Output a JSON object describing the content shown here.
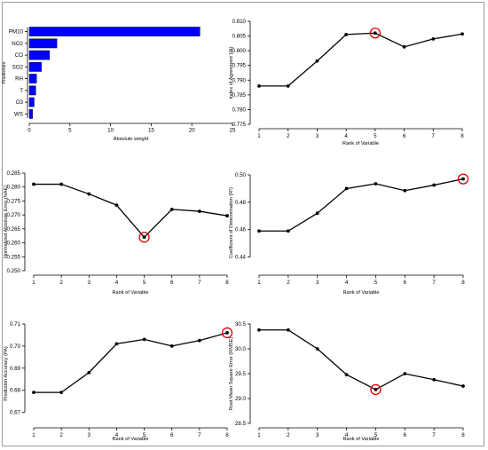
{
  "chart_data": [
    {
      "type": "bar",
      "orientation": "horizontal",
      "categories": [
        "WS",
        "O3",
        "T",
        "RH",
        "SO2",
        "CO",
        "NO2",
        "PM10"
      ],
      "values": [
        0.4,
        0.6,
        0.8,
        0.9,
        1.5,
        2.5,
        3.4,
        21.0
      ],
      "xlabel": "Absolute weight",
      "ylabel": "Predictors",
      "xlim": [
        0,
        25
      ],
      "xticks": [
        0,
        5,
        10,
        15,
        20,
        25
      ],
      "bar_color": "#0000ff"
    },
    {
      "type": "line",
      "x": [
        1,
        2,
        3,
        4,
        5,
        6,
        7,
        8
      ],
      "y": [
        0.788,
        0.788,
        0.7965,
        0.8055,
        0.806,
        0.8013,
        0.804,
        0.8057
      ],
      "xlabel": "Rank of Variable",
      "ylabel": "Index of Agreement (IA)",
      "ylim": [
        0.775,
        0.81
      ],
      "yticks": [
        0.775,
        0.78,
        0.785,
        0.79,
        0.795,
        0.8,
        0.805,
        0.81
      ],
      "highlight_x": 5,
      "highlight_color": "#e00000"
    },
    {
      "type": "line",
      "x": [
        1,
        2,
        3,
        4,
        5,
        6,
        7,
        8
      ],
      "y": [
        0.281,
        0.281,
        0.2775,
        0.2735,
        0.262,
        0.272,
        0.2713,
        0.2697
      ],
      "xlabel": "Rank of Variable",
      "ylabel": "Normalized Absolute Error (NAE)",
      "ylim": [
        0.25,
        0.285
      ],
      "yticks": [
        0.25,
        0.255,
        0.26,
        0.265,
        0.27,
        0.275,
        0.28,
        0.285
      ],
      "highlight_x": 5,
      "highlight_color": "#e00000"
    },
    {
      "type": "line",
      "x": [
        1,
        2,
        3,
        4,
        5,
        6,
        7,
        8
      ],
      "y": [
        0.459,
        0.459,
        0.472,
        0.49,
        0.4935,
        0.4885,
        0.4925,
        0.497
      ],
      "xlabel": "Rank of Variable",
      "ylabel": "Coefficient of Determination (R²)",
      "ylim": [
        0.43,
        0.5
      ],
      "yticks": [
        0.44,
        0.46,
        0.48,
        0.5
      ],
      "highlight_x": 8,
      "highlight_color": "#e00000"
    },
    {
      "type": "line",
      "x": [
        1,
        2,
        3,
        4,
        5,
        6,
        7,
        8
      ],
      "y": [
        0.679,
        0.679,
        0.688,
        0.701,
        0.703,
        0.7,
        0.7025,
        0.706
      ],
      "xlabel": "Rank of Variable",
      "ylabel": "Prediction Accuracy (PA)",
      "ylim": [
        0.665,
        0.71
      ],
      "yticks": [
        0.67,
        0.68,
        0.69,
        0.7,
        0.71
      ],
      "highlight_x": 8,
      "highlight_color": "#e00000"
    },
    {
      "type": "line",
      "x": [
        1,
        2,
        3,
        4,
        5,
        6,
        7,
        8
      ],
      "y": [
        30.38,
        30.38,
        30.0,
        29.48,
        29.18,
        29.5,
        29.38,
        29.25
      ],
      "xlabel": "Rank of Variable",
      "ylabel": "Root Mean Square Error (RMSE)",
      "ylim": [
        28.5,
        30.5
      ],
      "yticks": [
        28.5,
        29.0,
        29.5,
        30.0,
        30.5
      ],
      "highlight_x": 5,
      "highlight_color": "#e00000"
    }
  ]
}
